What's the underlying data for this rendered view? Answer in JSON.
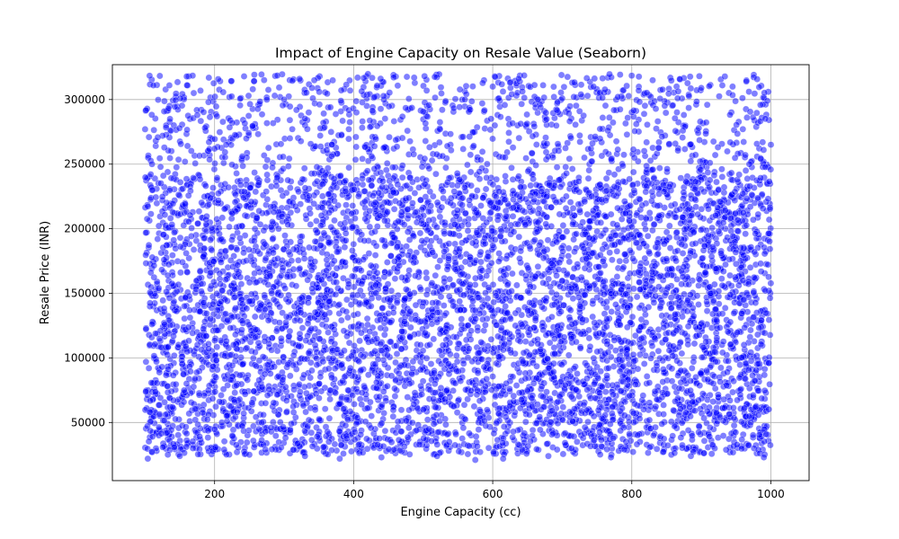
{
  "chart_data": {
    "type": "scatter",
    "title": "Impact of Engine Capacity on Resale Value (Seaborn)",
    "xlabel": "Engine Capacity (cc)",
    "ylabel": "Resale Price (INR)",
    "xlim": [
      53,
      1055
    ],
    "ylim": [
      5000,
      327000
    ],
    "x_ticks": [
      200,
      400,
      600,
      800,
      1000
    ],
    "y_ticks": [
      50000,
      100000,
      150000,
      200000,
      250000,
      300000
    ],
    "x_tick_labels": [
      "200",
      "400",
      "600",
      "800",
      "1000"
    ],
    "y_tick_labels": [
      "50000",
      "100000",
      "150000",
      "200000",
      "250000",
      "300000"
    ],
    "grid": true,
    "series": [
      {
        "color": "#0000ff",
        "opacity": 0.5,
        "distribution": {
          "count": 6800,
          "x_range": [
            100,
            1000
          ],
          "y_range": [
            20000,
            320000
          ],
          "dense_y_range": [
            25000,
            240000
          ],
          "sparse_y_range": [
            240000,
            320000
          ],
          "sparse_fraction": 0.14
        },
        "points": [
          [
            100,
            277000
          ],
          [
            104,
            22000
          ],
          [
            112,
            311000
          ],
          [
            135,
            311000
          ],
          [
            170,
            305000
          ],
          [
            200,
            262000
          ],
          [
            255,
            308000
          ],
          [
            300,
            300000
          ],
          [
            340,
            309000
          ],
          [
            395,
            307000
          ],
          [
            430,
            302000
          ],
          [
            487,
            317000
          ],
          [
            505,
            307000
          ],
          [
            560,
            300000
          ],
          [
            600,
            310000
          ],
          [
            625,
            313000
          ],
          [
            665,
            300000
          ],
          [
            700,
            301000
          ],
          [
            745,
            310000
          ],
          [
            780,
            302000
          ],
          [
            810,
            307000
          ],
          [
            830,
            315000
          ],
          [
            900,
            309000
          ],
          [
            945,
            310000
          ],
          [
            995,
            299000
          ],
          [
            150,
            24000
          ],
          [
            250,
            25000
          ],
          [
            330,
            24000
          ],
          [
            380,
            22000
          ],
          [
            440,
            23000
          ],
          [
            520,
            24000
          ],
          [
            575,
            21000
          ],
          [
            615,
            22000
          ],
          [
            680,
            24000
          ],
          [
            770,
            23000
          ],
          [
            885,
            24000
          ],
          [
            990,
            23000
          ],
          [
            1000,
            265000
          ],
          [
            110,
            250000
          ],
          [
            240,
            256000
          ]
        ]
      }
    ]
  }
}
